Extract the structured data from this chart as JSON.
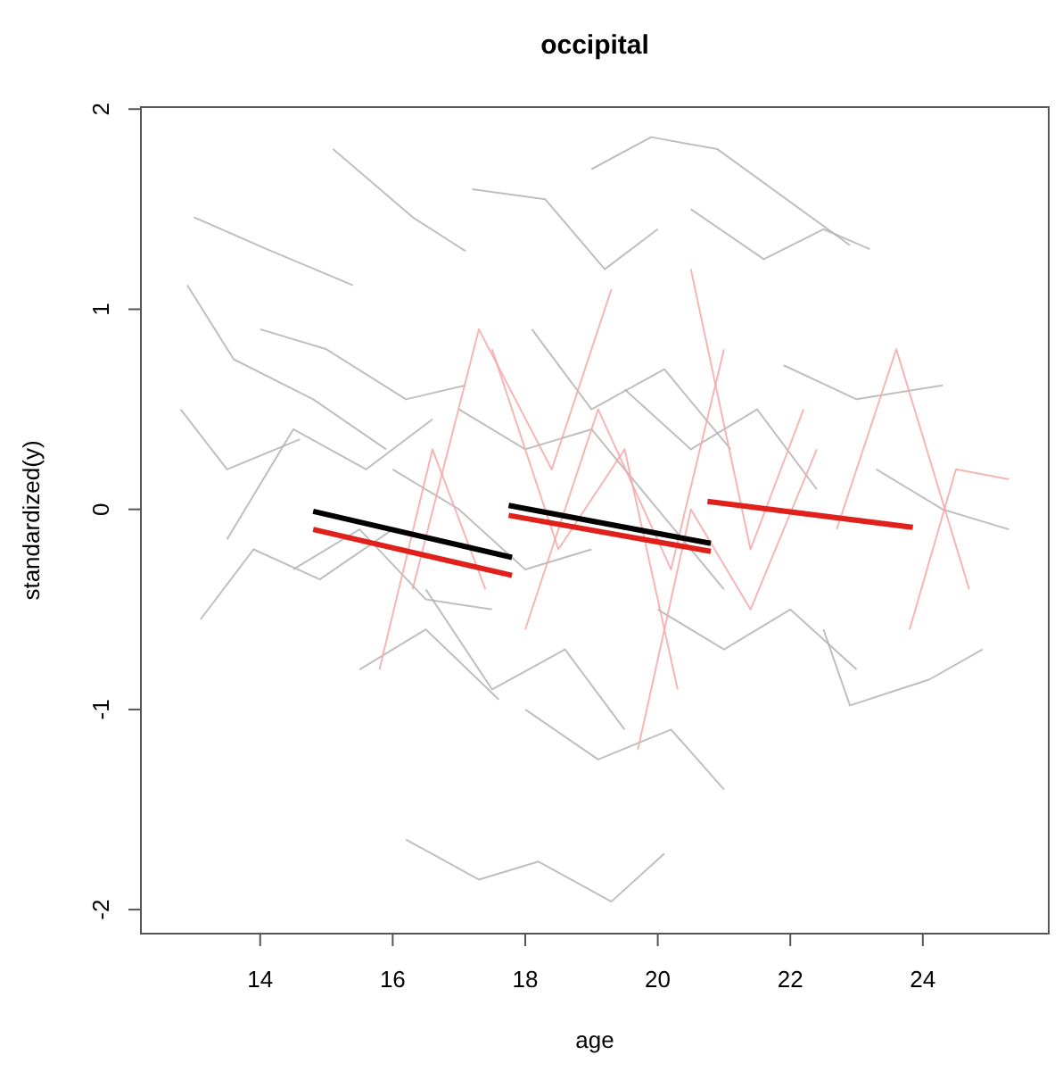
{
  "chart_data": {
    "type": "line",
    "title": "occipital",
    "xlabel": "age",
    "ylabel": "standardized(y)",
    "xlim": [
      12.2,
      25.9
    ],
    "ylim": [
      -2.12,
      2.01
    ],
    "xticks": [
      14,
      16,
      18,
      20,
      22,
      24
    ],
    "yticks": [
      -2,
      -1,
      0,
      1,
      2
    ],
    "grid": false,
    "series": [
      {
        "color": "#b4b4b4",
        "x": [
          13.0,
          14.1,
          15.4
        ],
        "values": [
          1.46,
          1.3,
          1.12
        ]
      },
      {
        "color": "#b4b4b4",
        "x": [
          12.9,
          13.6,
          14.8,
          15.9
        ],
        "values": [
          1.12,
          0.75,
          0.55,
          0.3
        ]
      },
      {
        "color": "#b4b4b4",
        "x": [
          12.8,
          13.5,
          14.6
        ],
        "values": [
          0.5,
          0.2,
          0.35
        ]
      },
      {
        "color": "#b4b4b4",
        "x": [
          13.1,
          13.9,
          14.9,
          16.0
        ],
        "values": [
          -0.55,
          -0.2,
          -0.35,
          -0.1
        ]
      },
      {
        "color": "#b4b4b4",
        "x": [
          13.5,
          14.5,
          15.6,
          16.6
        ],
        "values": [
          -0.15,
          0.4,
          0.2,
          0.45
        ]
      },
      {
        "color": "#b4b4b4",
        "x": [
          14.0,
          15.0,
          16.2,
          17.1
        ],
        "values": [
          0.9,
          0.8,
          0.55,
          0.62
        ]
      },
      {
        "color": "#b4b4b4",
        "x": [
          15.1,
          16.3,
          17.1
        ],
        "values": [
          1.8,
          1.46,
          1.29
        ]
      },
      {
        "color": "#b4b4b4",
        "x": [
          16.2,
          17.3,
          18.2,
          19.3,
          20.1
        ],
        "values": [
          -1.65,
          -1.85,
          -1.76,
          -1.96,
          -1.72
        ]
      },
      {
        "color": "#b4b4b4",
        "x": [
          19.0,
          19.9,
          20.9,
          22.9
        ],
        "values": [
          1.7,
          1.86,
          1.8,
          1.32
        ]
      },
      {
        "color": "#b4b4b4",
        "x": [
          17.2,
          18.3,
          19.2,
          20.0
        ],
        "values": [
          1.6,
          1.55,
          1.2,
          1.4
        ]
      },
      {
        "color": "#b4b4b4",
        "x": [
          20.5,
          21.6,
          22.5,
          23.2
        ],
        "values": [
          1.5,
          1.25,
          1.4,
          1.3
        ]
      },
      {
        "color": "#b4b4b4",
        "x": [
          21.9,
          23.0,
          24.3
        ],
        "values": [
          0.72,
          0.55,
          0.62
        ]
      },
      {
        "color": "#b4b4b4",
        "x": [
          22.5,
          22.9,
          24.1,
          24.9
        ],
        "values": [
          -0.6,
          -0.98,
          -0.85,
          -0.7
        ]
      },
      {
        "color": "#b4b4b4",
        "x": [
          23.3,
          24.3,
          25.3
        ],
        "values": [
          0.2,
          0.0,
          -0.1
        ]
      },
      {
        "color": "#b4b4b4",
        "x": [
          16.5,
          17.5,
          18.6,
          19.5
        ],
        "values": [
          -0.4,
          -0.9,
          -0.7,
          -1.1
        ]
      },
      {
        "color": "#b4b4b4",
        "x": [
          18.0,
          19.1,
          20.2,
          21.0
        ],
        "values": [
          -1.0,
          -1.25,
          -1.1,
          -1.4
        ]
      },
      {
        "color": "#b4b4b4",
        "x": [
          15.5,
          16.5,
          17.6
        ],
        "values": [
          -0.8,
          -0.6,
          -0.95
        ]
      },
      {
        "color": "#b4b4b4",
        "x": [
          19.5,
          20.5,
          21.5,
          22.4
        ],
        "values": [
          0.6,
          0.3,
          0.5,
          0.1
        ]
      },
      {
        "color": "#b4b4b4",
        "x": [
          18.1,
          19.0,
          20.1,
          21.1
        ],
        "values": [
          0.9,
          0.5,
          0.7,
          0.3
        ]
      },
      {
        "color": "#b4b4b4",
        "x": [
          16.0,
          17.0,
          18.0,
          19.0
        ],
        "values": [
          0.2,
          0.0,
          -0.3,
          -0.2
        ]
      },
      {
        "color": "#b4b4b4",
        "x": [
          17.0,
          18.0,
          19.0,
          20.0,
          21.0
        ],
        "values": [
          0.5,
          0.3,
          0.4,
          0.0,
          -0.4
        ]
      },
      {
        "color": "#b4b4b4",
        "x": [
          20.0,
          21.0,
          22.0,
          23.0
        ],
        "values": [
          -0.5,
          -0.7,
          -0.5,
          -0.8
        ]
      },
      {
        "color": "#b4b4b4",
        "x": [
          14.5,
          15.5,
          16.5,
          17.5
        ],
        "values": [
          -0.3,
          -0.1,
          -0.45,
          -0.5
        ]
      },
      {
        "color": "#f4a8a8",
        "x": [
          16.3,
          17.3,
          18.4,
          19.3
        ],
        "values": [
          -0.4,
          0.9,
          0.2,
          1.1
        ]
      },
      {
        "color": "#f4a8a8",
        "x": [
          18.0,
          19.1,
          20.2,
          21.0
        ],
        "values": [
          -0.6,
          0.5,
          -0.3,
          0.8
        ]
      },
      {
        "color": "#f4a8a8",
        "x": [
          20.5,
          21.4,
          22.2
        ],
        "values": [
          1.2,
          -0.2,
          0.5
        ]
      },
      {
        "color": "#f4a8a8",
        "x": [
          22.7,
          23.6,
          24.7
        ],
        "values": [
          -0.1,
          0.8,
          -0.4
        ]
      },
      {
        "color": "#f4a8a8",
        "x": [
          17.5,
          18.5,
          19.5,
          20.3
        ],
        "values": [
          0.8,
          -0.2,
          0.3,
          -0.9
        ]
      },
      {
        "color": "#f4a8a8",
        "x": [
          19.7,
          20.5,
          21.4,
          22.4
        ],
        "values": [
          -1.2,
          0.0,
          -0.5,
          0.3
        ]
      },
      {
        "color": "#f4a8a8",
        "x": [
          23.8,
          24.5,
          25.3
        ],
        "values": [
          -0.6,
          0.2,
          0.15
        ]
      },
      {
        "color": "#f4a8a8",
        "x": [
          15.8,
          16.6,
          17.4
        ],
        "values": [
          -0.8,
          0.3,
          -0.4
        ]
      },
      {
        "color": "#000000",
        "x": [
          14.8,
          17.8
        ],
        "values": [
          -0.01,
          -0.24
        ]
      },
      {
        "color": "#e0201b",
        "x": [
          14.8,
          17.8
        ],
        "values": [
          -0.1,
          -0.33
        ]
      },
      {
        "color": "#000000",
        "x": [
          17.75,
          20.8
        ],
        "values": [
          0.02,
          -0.17
        ]
      },
      {
        "color": "#e0201b",
        "x": [
          17.75,
          20.8
        ],
        "values": [
          -0.03,
          -0.21
        ]
      },
      {
        "color": "#e0201b",
        "x": [
          20.75,
          23.85
        ],
        "values": [
          0.04,
          -0.09
        ]
      }
    ]
  }
}
